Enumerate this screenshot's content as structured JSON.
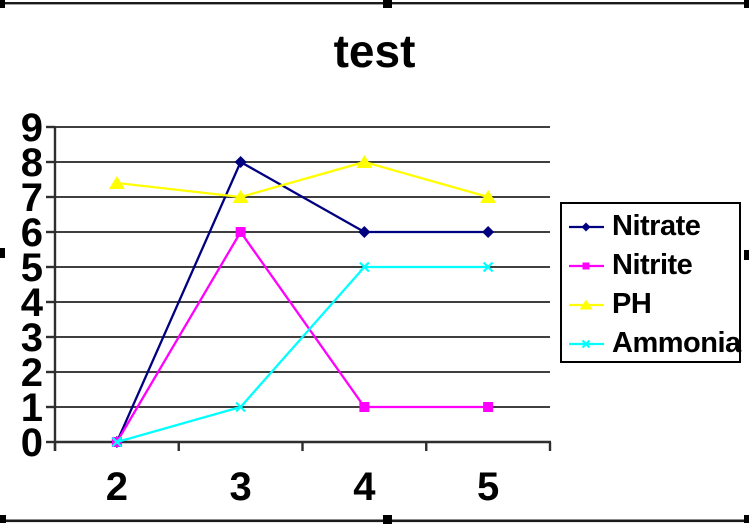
{
  "chart_data": {
    "type": "line",
    "title": "test",
    "x": [
      2,
      3,
      4,
      5
    ],
    "xlabel": "",
    "ylabel": "",
    "ylim": [
      0,
      9
    ],
    "y_tick_step": 1,
    "y_tick_labels": [
      "0",
      "1",
      "2",
      "3",
      "4",
      "5",
      "6",
      "7",
      "8",
      "9"
    ],
    "x_tick_labels": [
      "2",
      "3",
      "4",
      "5"
    ],
    "grid": "horizontal gridlines on, every 1 unit",
    "legend_position": "right",
    "series": [
      {
        "name": "Nitrate",
        "color": "#000080",
        "marker": "diamond",
        "values": [
          0,
          8,
          6,
          6
        ]
      },
      {
        "name": "Nitrite",
        "color": "#ff00ff",
        "marker": "square",
        "values": [
          0,
          6,
          1,
          1
        ]
      },
      {
        "name": "PH",
        "color": "#ffff00",
        "marker": "triangle",
        "values": [
          7.4,
          7,
          8,
          7
        ]
      },
      {
        "name": "Ammonia",
        "color": "#00ffff",
        "marker": "x",
        "values": [
          0,
          1,
          5,
          5
        ]
      }
    ]
  },
  "colors": {
    "background": "#ffffff",
    "text": "#000000",
    "axis": "#2e2e2e",
    "gridline": "#3f3f3f",
    "chart_border": "#1a1a1a",
    "selection_handle": "#000000",
    "legend_border": "#000000"
  },
  "selection_handles": [
    "top-left",
    "top-center",
    "top-right",
    "left-middle",
    "right-middle",
    "bottom-left",
    "bottom-center",
    "bottom-right"
  ]
}
